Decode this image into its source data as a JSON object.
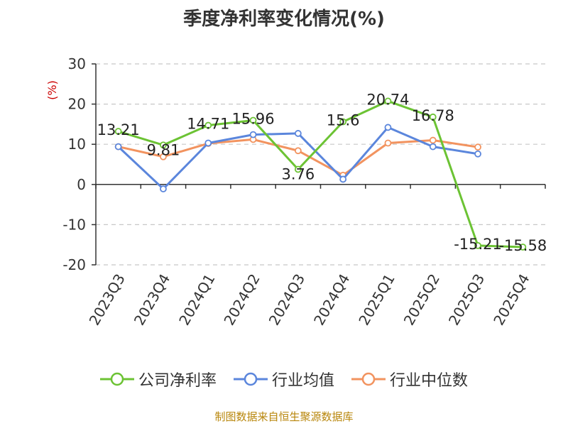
{
  "title": "季度净利率变化情况(%)",
  "source": "制图数据来自恒生聚源数据库",
  "colors": {
    "company": "#6cc334",
    "industry_avg": "#5b86dc",
    "industry_median": "#f2935f",
    "ylabel": "#cc0000",
    "source": "#b8860b"
  },
  "chart_data": {
    "type": "line",
    "ylabel": "(%)",
    "ylim": [
      -20,
      30
    ],
    "yticks": [
      30,
      20,
      10,
      0,
      -10,
      -20
    ],
    "grid": true,
    "legend_position": "bottom",
    "categories": [
      "2023Q3",
      "2023Q4",
      "2024Q1",
      "2024Q2",
      "2024Q3",
      "2024Q4",
      "2025Q1",
      "2025Q2",
      "2025Q3",
      "2025Q4"
    ],
    "series": [
      {
        "name": "公司净利率",
        "values": [
          13.21,
          9.81,
          14.71,
          15.96,
          3.76,
          15.6,
          20.74,
          16.78,
          -15.21,
          -15.58
        ],
        "labels": [
          "13.21",
          "9.81",
          "14.71",
          "15.96",
          "3.76",
          "15.6",
          "20.74",
          "16.78",
          "-15.21",
          "-15.58"
        ]
      },
      {
        "name": "行业均值",
        "values": [
          9.4,
          -1.1,
          10.3,
          12.4,
          12.7,
          1.3,
          14.2,
          9.4,
          7.6,
          null
        ]
      },
      {
        "name": "行业中位数",
        "values": [
          9.4,
          6.9,
          10.2,
          11.2,
          8.4,
          2.3,
          10.3,
          11.0,
          9.3,
          null
        ]
      }
    ]
  }
}
